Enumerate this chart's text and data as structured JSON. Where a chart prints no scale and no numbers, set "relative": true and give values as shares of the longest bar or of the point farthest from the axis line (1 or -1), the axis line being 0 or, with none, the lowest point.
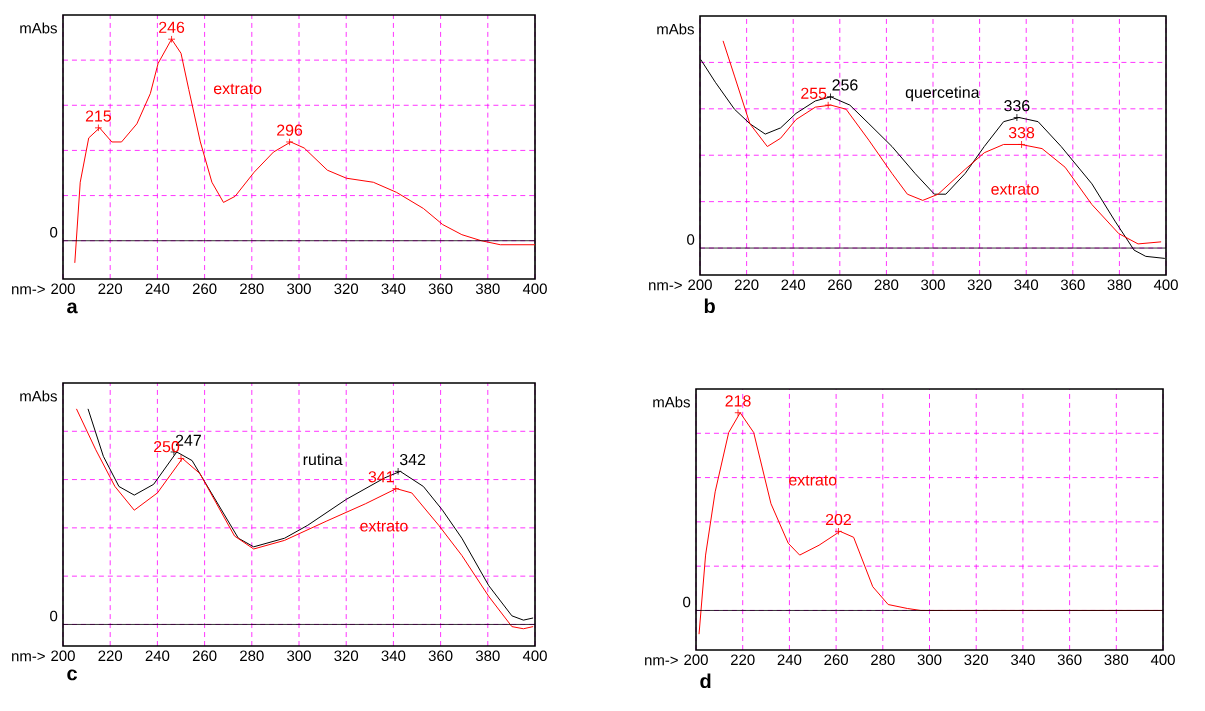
{
  "chart_data": [
    {
      "type": "line",
      "title": "a",
      "xlabel": "nm->",
      "ylabel": "mAbs",
      "relative": true,
      "grid": true,
      "xlim": [
        200,
        400
      ],
      "xticks": [
        200,
        220,
        240,
        260,
        280,
        300,
        320,
        340,
        360,
        380,
        400
      ],
      "ref_lines": [
        {
          "axis": "y",
          "value": 0,
          "label": "0"
        }
      ],
      "annotations": [
        {
          "text": "215",
          "x": 215,
          "y": 0.56
        },
        {
          "text": "246",
          "x": 246,
          "y": 1.0
        },
        {
          "text": "296",
          "x": 296,
          "y": 0.49
        }
      ],
      "series": [
        {
          "name": "extrato",
          "color": "#ff0000",
          "x": [
            205,
            207.3,
            210.9,
            215.5,
            220.7,
            224.8,
            231.3,
            237,
            240.3,
            246,
            250,
            253.3,
            258.2,
            263.1,
            268,
            272.9,
            281,
            289.2,
            296.5,
            302.2,
            312,
            320.1,
            331.5,
            341.3,
            352.7,
            360.9,
            369,
            377.2,
            385.3,
            400
          ],
          "values": [
            -0.11,
            0.29,
            0.51,
            0.56,
            0.49,
            0.49,
            0.58,
            0.73,
            0.88,
            1.0,
            0.93,
            0.75,
            0.49,
            0.29,
            0.19,
            0.22,
            0.34,
            0.44,
            0.49,
            0.46,
            0.35,
            0.31,
            0.29,
            0.24,
            0.16,
            0.08,
            0.03,
            0.0,
            -0.02,
            -0.02
          ]
        }
      ]
    },
    {
      "type": "line",
      "title": "b",
      "xlabel": "nm->",
      "ylabel": "mAbs",
      "relative": true,
      "grid": true,
      "xlim": [
        200,
        400
      ],
      "xticks": [
        200,
        220,
        240,
        260,
        280,
        300,
        320,
        340,
        360,
        380,
        400
      ],
      "ref_lines": [
        {
          "axis": "y",
          "value": 0,
          "label": "0"
        }
      ],
      "annotations": [
        {
          "text": "256",
          "x": 256,
          "y": 0.73
        },
        {
          "text": "255",
          "x": 255,
          "y": 0.69
        },
        {
          "text": "336",
          "x": 336,
          "y": 0.63
        },
        {
          "text": "338",
          "x": 338,
          "y": 0.5
        }
      ],
      "series": [
        {
          "name": "quercetina",
          "color": "#000000",
          "x": [
            200.3,
            206.6,
            214.8,
            221.4,
            228,
            234.6,
            241.2,
            249.5,
            256.1,
            264.3,
            272.5,
            282.4,
            292.3,
            300.6,
            305.5,
            313.8,
            322,
            330.3,
            336.9,
            345.1,
            355,
            368.2,
            378.1,
            386.3,
            391.3,
            399.5
          ],
          "values": [
            0.91,
            0.8,
            0.67,
            0.6,
            0.55,
            0.58,
            0.65,
            0.71,
            0.73,
            0.69,
            0.6,
            0.49,
            0.36,
            0.26,
            0.26,
            0.36,
            0.49,
            0.61,
            0.63,
            0.61,
            0.49,
            0.31,
            0.13,
            -0.01,
            -0.04,
            -0.05
          ]
        },
        {
          "name": "extrato",
          "color": "#ff0000",
          "x": [
            209.9,
            214.8,
            221.4,
            228.9,
            234.6,
            241.2,
            249.5,
            256.1,
            262.7,
            272.5,
            282.4,
            289,
            295.6,
            302.2,
            313.8,
            322,
            330.3,
            337.7,
            346.8,
            356.7,
            368.2,
            379.7,
            388,
            397.9
          ],
          "values": [
            1.0,
            0.83,
            0.6,
            0.49,
            0.53,
            0.62,
            0.68,
            0.69,
            0.67,
            0.52,
            0.36,
            0.26,
            0.23,
            0.26,
            0.38,
            0.46,
            0.5,
            0.5,
            0.48,
            0.39,
            0.21,
            0.07,
            0.02,
            0.03
          ]
        }
      ]
    },
    {
      "type": "line",
      "title": "c",
      "xlabel": "nm->",
      "ylabel": "mAbs",
      "relative": true,
      "grid": true,
      "xlim": [
        200,
        400
      ],
      "xticks": [
        200,
        220,
        240,
        260,
        280,
        300,
        320,
        340,
        360,
        380,
        400
      ],
      "ref_lines": [
        {
          "axis": "y",
          "value": 0,
          "label": "0"
        }
      ],
      "annotations": [
        {
          "text": "247",
          "x": 247,
          "y": 0.8
        },
        {
          "text": "250",
          "x": 250,
          "y": 0.77
        },
        {
          "text": "342",
          "x": 342,
          "y": 0.71
        },
        {
          "text": "341",
          "x": 341,
          "y": 0.63
        }
      ],
      "series": [
        {
          "name": "rutina",
          "color": "#000000",
          "x": [
            210.6,
            217.1,
            223.7,
            230.2,
            238.4,
            248.2,
            254.7,
            274.3,
            280.8,
            293.9,
            303.7,
            320,
            336.3,
            342.9,
            352.7,
            360.8,
            369,
            380.4,
            390.2,
            395.1,
            399.2
          ],
          "values": [
            1.0,
            0.78,
            0.64,
            0.6,
            0.65,
            0.8,
            0.76,
            0.4,
            0.36,
            0.4,
            0.46,
            0.58,
            0.68,
            0.71,
            0.64,
            0.53,
            0.4,
            0.18,
            0.04,
            0.02,
            0.03
          ]
        },
        {
          "name": "extrato",
          "color": "#ff0000",
          "x": [
            205.7,
            213.9,
            222,
            230.2,
            240,
            250.6,
            258,
            266.1,
            272.7,
            280.8,
            293.9,
            311.8,
            328.2,
            341.2,
            347.8,
            359.2,
            369,
            380.4,
            390.2,
            395.1,
            399.2
          ],
          "values": [
            1.0,
            0.81,
            0.64,
            0.53,
            0.61,
            0.77,
            0.7,
            0.54,
            0.41,
            0.35,
            0.39,
            0.48,
            0.56,
            0.63,
            0.61,
            0.46,
            0.32,
            0.13,
            -0.01,
            -0.02,
            -0.01
          ]
        }
      ]
    },
    {
      "type": "line",
      "title": "d",
      "xlabel": "nm->",
      "ylabel": "mAbs",
      "relative": true,
      "grid": true,
      "xlim": [
        200,
        400
      ],
      "xticks": [
        200,
        220,
        240,
        260,
        280,
        300,
        320,
        340,
        360,
        380,
        400
      ],
      "ref_lines": [
        {
          "axis": "y",
          "value": 0,
          "label": "0"
        }
      ],
      "annotations": [
        {
          "text": "218",
          "x": 218,
          "y": 1.0
        },
        {
          "text": "202",
          "x": 261,
          "y": 0.4
        }
      ],
      "series": [
        {
          "name": "extrato",
          "color": "#ff0000",
          "x": [
            201.3,
            204.1,
            208.2,
            214,
            218.9,
            224.7,
            232.1,
            239.5,
            244.4,
            252.7,
            261.7,
            267.5,
            275.7,
            282.3,
            290.5,
            296.3,
            399.5
          ],
          "values": [
            -0.12,
            0.28,
            0.6,
            0.9,
            1.0,
            0.9,
            0.54,
            0.34,
            0.28,
            0.33,
            0.4,
            0.37,
            0.12,
            0.03,
            0.01,
            0.0,
            0.0
          ]
        }
      ]
    }
  ]
}
